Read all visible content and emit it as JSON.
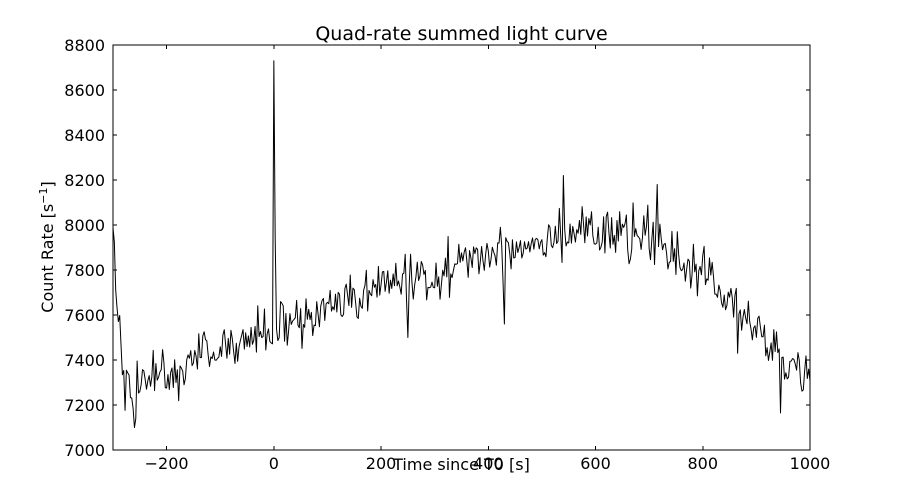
{
  "figure": {
    "title": "Quad-rate summed light curve",
    "xlabel": "Time since T0 [s]",
    "ylabel_prefix": "Count Rate [s",
    "ylabel_sup": "−1",
    "ylabel_suffix": "]"
  },
  "chart_data": {
    "type": "line",
    "title": "Quad-rate summed light curve",
    "xlabel": "Time since T0 [s]",
    "ylabel": "Count Rate [s^-1]",
    "xlim": [
      -300,
      1000
    ],
    "ylim": [
      7000,
      8800
    ],
    "xticks": {
      "values": [
        -200,
        0,
        200,
        400,
        600,
        800,
        1000
      ],
      "labels": [
        "−200",
        "0",
        "200",
        "400",
        "600",
        "800",
        "1000"
      ]
    },
    "yticks": {
      "values": [
        7000,
        7200,
        7400,
        7600,
        7800,
        8000,
        8200,
        8400,
        8600,
        8800
      ],
      "labels": [
        "7000",
        "7200",
        "7400",
        "7600",
        "7800",
        "8000",
        "8200",
        "8400",
        "8600",
        "8800"
      ]
    },
    "grid": false,
    "legend": null,
    "line_color": "#000000",
    "background_color": "#ffffff",
    "bin_seconds": 2.5,
    "noise_sigma": 55,
    "random_seed": 42,
    "trend_keypoints": [
      [
        -300,
        8040
      ],
      [
        -297,
        7920
      ],
      [
        -294,
        7760
      ],
      [
        -291,
        7630
      ],
      [
        -288,
        7540
      ],
      [
        -284,
        7460
      ],
      [
        -280,
        7390
      ],
      [
        -274,
        7310
      ],
      [
        -268,
        7220
      ],
      [
        -262,
        7120
      ],
      [
        -257,
        7230
      ],
      [
        -252,
        7310
      ],
      [
        -245,
        7330
      ],
      [
        -238,
        7340
      ],
      [
        -230,
        7300
      ],
      [
        -222,
        7345
      ],
      [
        -214,
        7325
      ],
      [
        -206,
        7335
      ],
      [
        -198,
        7345
      ],
      [
        -190,
        7360
      ],
      [
        -182,
        7315
      ],
      [
        -174,
        7355
      ],
      [
        -166,
        7375
      ],
      [
        -158,
        7385
      ],
      [
        -150,
        7400
      ],
      [
        -140,
        7420
      ],
      [
        -130,
        7430
      ],
      [
        -120,
        7440
      ],
      [
        -110,
        7450
      ],
      [
        -100,
        7450
      ],
      [
        -80,
        7460
      ],
      [
        -60,
        7470
      ],
      [
        -40,
        7498
      ],
      [
        -20,
        7520
      ],
      [
        0,
        7540
      ],
      [
        20,
        7555
      ],
      [
        40,
        7560
      ],
      [
        60,
        7580
      ],
      [
        80,
        7600
      ],
      [
        100,
        7620
      ],
      [
        120,
        7640
      ],
      [
        140,
        7655
      ],
      [
        160,
        7680
      ],
      [
        180,
        7700
      ],
      [
        200,
        7728
      ],
      [
        220,
        7740
      ],
      [
        240,
        7758
      ],
      [
        260,
        7768
      ],
      [
        280,
        7778
      ],
      [
        300,
        7790
      ],
      [
        320,
        7800
      ],
      [
        340,
        7820
      ],
      [
        360,
        7840
      ],
      [
        380,
        7858
      ],
      [
        400,
        7870
      ],
      [
        420,
        7880
      ],
      [
        440,
        7898
      ],
      [
        460,
        7910
      ],
      [
        480,
        7928
      ],
      [
        500,
        7948
      ],
      [
        520,
        7958
      ],
      [
        540,
        7968
      ],
      [
        560,
        7978
      ],
      [
        580,
        7982
      ],
      [
        600,
        7972
      ],
      [
        620,
        7960
      ],
      [
        640,
        7952
      ],
      [
        660,
        7950
      ],
      [
        680,
        7940
      ],
      [
        700,
        7928
      ],
      [
        720,
        7908
      ],
      [
        740,
        7880
      ],
      [
        760,
        7850
      ],
      [
        780,
        7820
      ],
      [
        800,
        7788
      ],
      [
        820,
        7740
      ],
      [
        840,
        7692
      ],
      [
        860,
        7640
      ],
      [
        880,
        7590
      ],
      [
        900,
        7538
      ],
      [
        920,
        7480
      ],
      [
        940,
        7432
      ],
      [
        960,
        7390
      ],
      [
        980,
        7340
      ],
      [
        1000,
        7300
      ]
    ],
    "spikes": [
      [
        0,
        8730
      ],
      [
        2.5,
        7940
      ],
      [
        540,
        8220
      ],
      [
        715,
        8180
      ]
    ],
    "dips": [
      [
        -260,
        7100
      ],
      [
        250,
        7500
      ],
      [
        430,
        7560
      ],
      [
        865,
        7430
      ],
      [
        945,
        7165
      ]
    ]
  }
}
